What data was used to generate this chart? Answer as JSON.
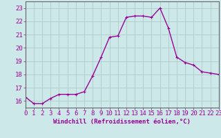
{
  "x": [
    0,
    1,
    2,
    3,
    4,
    5,
    6,
    7,
    8,
    9,
    10,
    11,
    12,
    13,
    14,
    15,
    16,
    17,
    18,
    19,
    20,
    21,
    22,
    23
  ],
  "y": [
    16.3,
    15.8,
    15.8,
    16.2,
    16.5,
    16.5,
    16.5,
    16.7,
    17.9,
    19.3,
    20.8,
    20.9,
    22.3,
    22.4,
    22.4,
    22.3,
    23.0,
    21.5,
    19.3,
    18.9,
    18.7,
    18.2,
    18.1,
    18.0
  ],
  "line_color": "#990099",
  "marker": "+",
  "marker_size": 3,
  "bg_color": "#cce8e8",
  "grid_color": "#b0c8c8",
  "xlabel": "Windchill (Refroidissement éolien,°C)",
  "xlim": [
    0,
    23
  ],
  "ylim": [
    15.5,
    23.5
  ],
  "yticks": [
    16,
    17,
    18,
    19,
    20,
    21,
    22,
    23
  ],
  "xticks": [
    0,
    1,
    2,
    3,
    4,
    5,
    6,
    7,
    8,
    9,
    10,
    11,
    12,
    13,
    14,
    15,
    16,
    17,
    18,
    19,
    20,
    21,
    22,
    23
  ],
  "xlabel_fontsize": 6.5,
  "tick_fontsize": 6.5,
  "line_width": 1.0,
  "marker_edge_width": 0.8
}
